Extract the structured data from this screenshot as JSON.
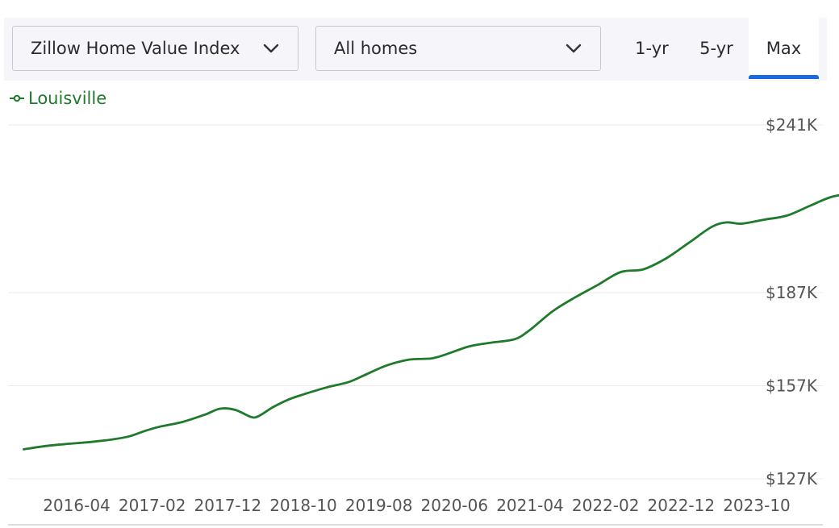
{
  "toolbar": {
    "metric_select": {
      "value": "Zillow Home Value Index",
      "icon": "chevron-down-icon"
    },
    "home_type_select": {
      "value": "All homes",
      "icon": "chevron-down-icon"
    },
    "range_tabs": [
      {
        "label": "1-yr",
        "selected": false
      },
      {
        "label": "5-yr",
        "selected": false
      },
      {
        "label": "Max",
        "selected": true
      }
    ],
    "accent_color": "#1a6ae0"
  },
  "chart_data": {
    "type": "line",
    "title": "",
    "xlabel": "",
    "ylabel": "",
    "legend_placement": "top-left",
    "grid": true,
    "y_ticks": [
      {
        "value": 127,
        "label": "$127K"
      },
      {
        "value": 157,
        "label": "$157K"
      },
      {
        "value": 187,
        "label": "$187K"
      },
      {
        "value": 241,
        "label": "$241K"
      }
    ],
    "x_ticks": [
      "2016-04",
      "2017-02",
      "2017-12",
      "2018-10",
      "2019-08",
      "2020-06",
      "2021-04",
      "2022-02",
      "2022-12",
      "2023-10"
    ],
    "series": [
      {
        "name": "Louisville",
        "color": "#1f7a2c",
        "points": [
          [
            "2015-09",
            136.5
          ],
          [
            "2015-12",
            137.6
          ],
          [
            "2016-03",
            138.3
          ],
          [
            "2016-06",
            138.9
          ],
          [
            "2016-09",
            139.8
          ],
          [
            "2016-11",
            140.7
          ],
          [
            "2017-01",
            142.4
          ],
          [
            "2017-03",
            143.8
          ],
          [
            "2017-06",
            145.3
          ],
          [
            "2017-09",
            147.7
          ],
          [
            "2017-11",
            149.6
          ],
          [
            "2018-01",
            149.2
          ],
          [
            "2018-03",
            147.0
          ],
          [
            "2018-04",
            147.1
          ],
          [
            "2018-06",
            150.1
          ],
          [
            "2018-08",
            152.5
          ],
          [
            "2018-10",
            154.2
          ],
          [
            "2019-01",
            156.4
          ],
          [
            "2019-04",
            158.2
          ],
          [
            "2019-06",
            160.3
          ],
          [
            "2019-09",
            163.5
          ],
          [
            "2019-12",
            165.4
          ],
          [
            "2020-03",
            165.8
          ],
          [
            "2020-05",
            167.2
          ],
          [
            "2020-08",
            169.7
          ],
          [
            "2020-11",
            170.9
          ],
          [
            "2021-02",
            172.0
          ],
          [
            "2021-04",
            175.0
          ],
          [
            "2021-07",
            181.0
          ],
          [
            "2021-10",
            185.5
          ],
          [
            "2022-01",
            189.5
          ],
          [
            "2022-04",
            193.6
          ],
          [
            "2022-07",
            194.5
          ],
          [
            "2022-10",
            198.0
          ],
          [
            "2023-01",
            203.0
          ],
          [
            "2023-04",
            208.1
          ],
          [
            "2023-06",
            209.6
          ],
          [
            "2023-08",
            209.2
          ],
          [
            "2023-11",
            210.5
          ],
          [
            "2024-02",
            211.8
          ],
          [
            "2024-05",
            214.9
          ],
          [
            "2024-08",
            217.9
          ],
          [
            "2024-11",
            218.9
          ]
        ]
      }
    ]
  }
}
